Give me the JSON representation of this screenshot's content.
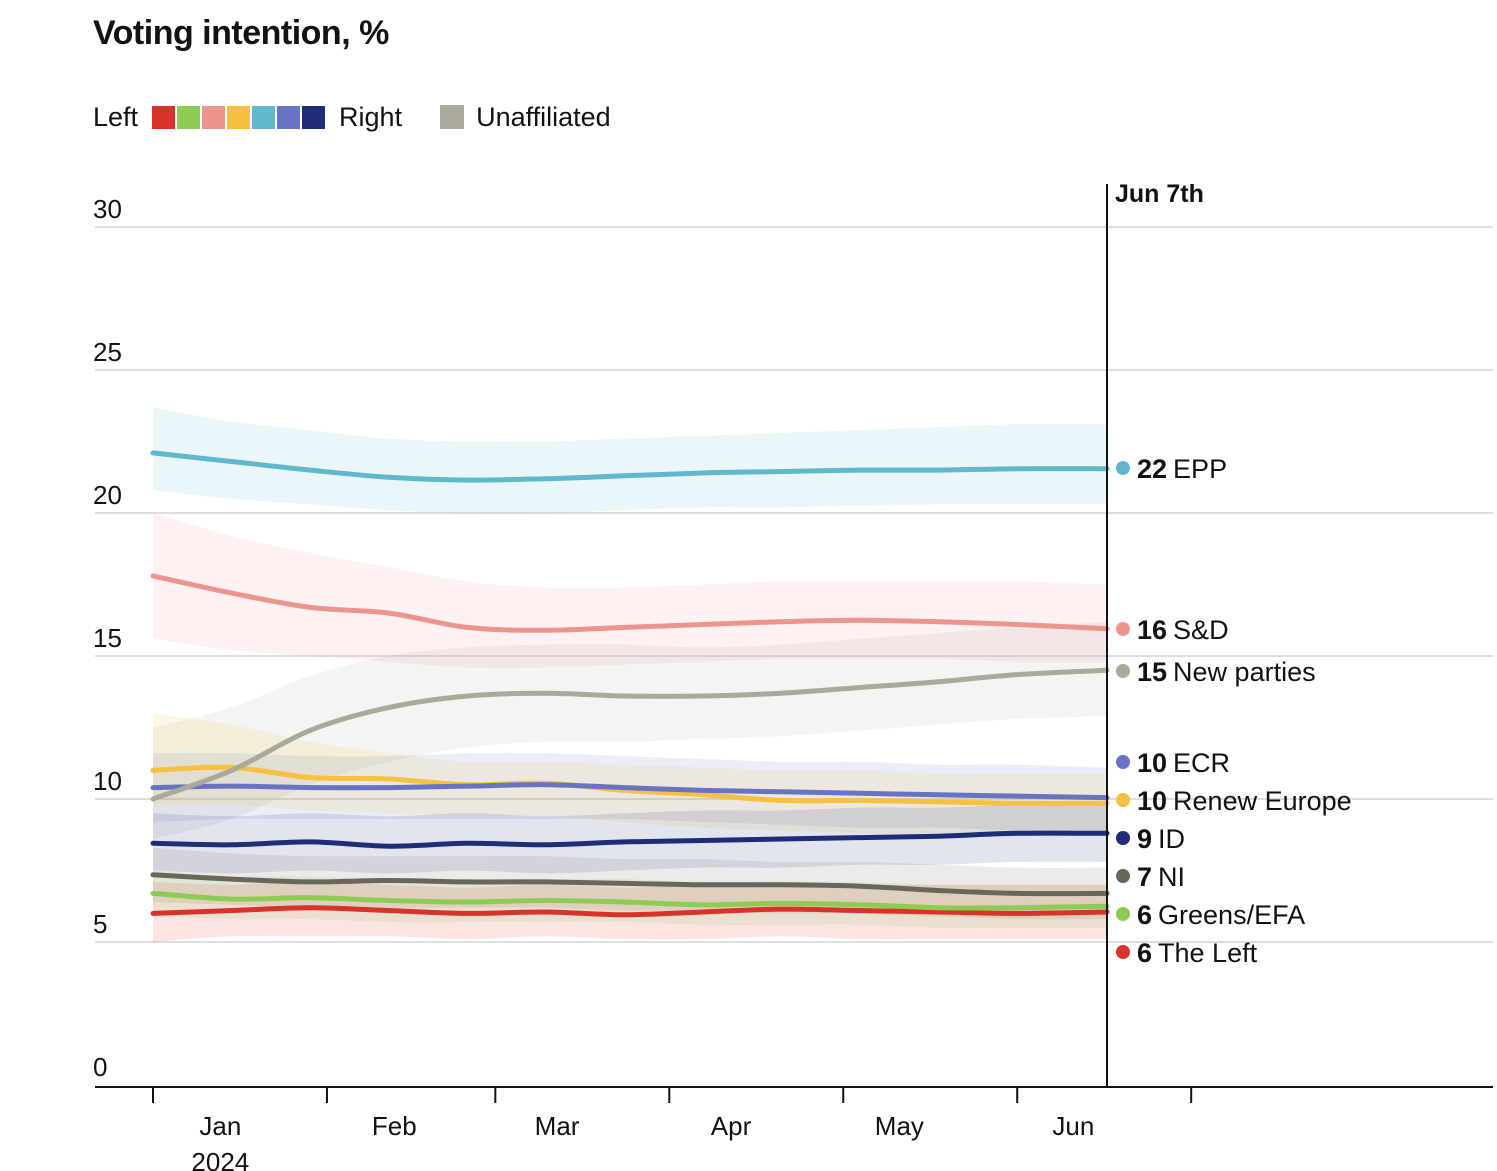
{
  "header": {
    "title": "Voting intention, %"
  },
  "legend": {
    "left_label": "Left",
    "right_label": "Right",
    "unaffiliated_label": "Unaffiliated",
    "scale_colors": [
      "#d7332a",
      "#8dcb52",
      "#ec958f",
      "#f6c041",
      "#5fb8cd",
      "#6873c3",
      "#1f2c78"
    ],
    "unaffiliated_color": "#aaa99a"
  },
  "chart_data": {
    "type": "line",
    "title": "Voting intention, %",
    "xlabel": "",
    "ylabel": "",
    "ylim": [
      0,
      30
    ],
    "yticks": [
      0,
      5,
      10,
      15,
      20,
      25,
      30
    ],
    "x_start": "2023-12-20",
    "x_end": "2024-06-07",
    "x_ticks": [
      {
        "label": "Jan",
        "year": "2024",
        "tick_date": "2023-12-20",
        "label_date": "2024-01-01"
      },
      {
        "label": "Feb",
        "year": "",
        "tick_date": "2024-01-20",
        "label_date": "2024-02-01"
      },
      {
        "label": "Mar",
        "year": "",
        "tick_date": "2024-02-19",
        "label_date": "2024-03-01"
      },
      {
        "label": "Apr",
        "year": "",
        "tick_date": "2024-03-21",
        "label_date": "2024-04-01"
      },
      {
        "label": "May",
        "year": "",
        "tick_date": "2024-04-21",
        "label_date": "2024-05-01"
      },
      {
        "label": "Jun",
        "year": "",
        "tick_date": "2024-05-22",
        "label_date": "2024-06-01"
      },
      {
        "label": "",
        "year": "",
        "tick_date": "2024-06-22",
        "label_date": ""
      }
    ],
    "cutoff": {
      "label": "Jun 7th",
      "date": "2024-06-07"
    },
    "x": [
      "2023-12-20",
      "2024-01-03",
      "2024-01-17",
      "2024-01-31",
      "2024-02-14",
      "2024-02-28",
      "2024-03-13",
      "2024-03-27",
      "2024-04-10",
      "2024-04-24",
      "2024-05-08",
      "2024-05-22",
      "2024-06-07"
    ],
    "series": [
      {
        "name": "EPP",
        "value_label": "22",
        "color": "#5fb8cd",
        "values": [
          22.1,
          21.8,
          21.5,
          21.25,
          21.15,
          21.2,
          21.3,
          21.4,
          21.45,
          21.5,
          21.5,
          21.55,
          21.55
        ],
        "lower": [
          20.8,
          20.5,
          20.3,
          20.1,
          20.0,
          20.0,
          20.1,
          20.2,
          20.2,
          20.25,
          20.3,
          20.3,
          20.3
        ],
        "upper": [
          23.7,
          23.2,
          22.9,
          22.6,
          22.5,
          22.5,
          22.6,
          22.7,
          22.8,
          22.9,
          23.0,
          23.1,
          23.1
        ]
      },
      {
        "name": "S&D",
        "value_label": "16",
        "color": "#ec958f",
        "values": [
          17.8,
          17.2,
          16.7,
          16.5,
          16.0,
          15.9,
          16.0,
          16.1,
          16.2,
          16.25,
          16.2,
          16.1,
          15.95
        ],
        "lower": [
          15.6,
          15.2,
          15.0,
          14.8,
          14.6,
          14.6,
          14.7,
          14.8,
          14.9,
          14.9,
          14.9,
          14.8,
          14.8
        ],
        "upper": [
          20.0,
          19.2,
          18.6,
          18.1,
          17.6,
          17.4,
          17.4,
          17.5,
          17.6,
          17.6,
          17.6,
          17.6,
          17.5
        ]
      },
      {
        "name": "New parties",
        "value_label": "15",
        "color": "#aaa99a",
        "values": [
          10.0,
          11.0,
          12.4,
          13.2,
          13.6,
          13.7,
          13.6,
          13.6,
          13.7,
          13.9,
          14.1,
          14.35,
          14.5
        ],
        "lower": [
          8.6,
          9.3,
          10.5,
          11.3,
          11.8,
          12.0,
          12.0,
          12.1,
          12.2,
          12.4,
          12.6,
          12.8,
          12.9
        ],
        "upper": [
          12.5,
          13.2,
          14.3,
          15.0,
          15.3,
          15.4,
          15.4,
          15.3,
          15.4,
          15.6,
          15.8,
          16.0,
          16.2
        ]
      },
      {
        "name": "ECR",
        "value_label": "10",
        "color": "#6873c3",
        "values": [
          10.4,
          10.45,
          10.4,
          10.4,
          10.45,
          10.5,
          10.4,
          10.3,
          10.25,
          10.2,
          10.15,
          10.1,
          10.05
        ],
        "lower": [
          9.2,
          9.3,
          9.3,
          9.3,
          9.3,
          9.3,
          9.3,
          9.2,
          9.1,
          9.0,
          9.0,
          8.9,
          8.9
        ],
        "upper": [
          11.6,
          11.6,
          11.5,
          11.5,
          11.6,
          11.6,
          11.5,
          11.4,
          11.3,
          11.3,
          11.2,
          11.2,
          11.1
        ]
      },
      {
        "name": "Renew Europe",
        "value_label": "10",
        "color": "#f6c041",
        "values": [
          11.0,
          11.1,
          10.75,
          10.7,
          10.5,
          10.55,
          10.3,
          10.15,
          9.95,
          9.95,
          9.9,
          9.85,
          9.85
        ],
        "lower": [
          9.8,
          9.8,
          9.6,
          9.5,
          9.4,
          9.4,
          9.2,
          9.0,
          8.9,
          8.8,
          8.8,
          8.7,
          8.7
        ],
        "upper": [
          13.0,
          12.6,
          12.0,
          11.6,
          11.3,
          11.3,
          11.2,
          11.1,
          11.0,
          11.0,
          10.9,
          10.9,
          10.9
        ]
      },
      {
        "name": "ID",
        "value_label": "9",
        "color": "#1f2c78",
        "values": [
          8.45,
          8.4,
          8.5,
          8.35,
          8.45,
          8.4,
          8.5,
          8.55,
          8.6,
          8.65,
          8.7,
          8.8,
          8.8
        ],
        "lower": [
          7.5,
          7.4,
          7.5,
          7.4,
          7.5,
          7.4,
          7.5,
          7.6,
          7.6,
          7.7,
          7.7,
          7.8,
          7.8
        ],
        "upper": [
          9.5,
          9.4,
          9.5,
          9.4,
          9.5,
          9.4,
          9.5,
          9.6,
          9.6,
          9.7,
          9.7,
          9.8,
          9.8
        ]
      },
      {
        "name": "NI",
        "value_label": "7",
        "color": "#6a675a",
        "values": [
          7.35,
          7.2,
          7.1,
          7.15,
          7.1,
          7.1,
          7.05,
          7.0,
          7.0,
          6.95,
          6.8,
          6.7,
          6.7
        ],
        "lower": [
          6.4,
          6.3,
          6.2,
          6.2,
          6.2,
          6.2,
          6.1,
          6.1,
          6.0,
          6.0,
          5.9,
          5.8,
          5.8
        ],
        "upper": [
          8.3,
          8.1,
          8.0,
          8.0,
          8.0,
          8.0,
          7.9,
          7.9,
          7.8,
          7.8,
          7.7,
          7.6,
          7.6
        ]
      },
      {
        "name": "Greens/EFA",
        "value_label": "6",
        "color": "#8dcb52",
        "values": [
          6.7,
          6.5,
          6.55,
          6.45,
          6.4,
          6.45,
          6.4,
          6.3,
          6.35,
          6.3,
          6.2,
          6.2,
          6.25
        ],
        "lower": [
          5.9,
          5.8,
          5.8,
          5.7,
          5.7,
          5.7,
          5.7,
          5.6,
          5.6,
          5.6,
          5.5,
          5.5,
          5.5
        ],
        "upper": [
          7.5,
          7.3,
          7.3,
          7.2,
          7.2,
          7.2,
          7.2,
          7.1,
          7.1,
          7.1,
          7.0,
          7.0,
          7.0
        ]
      },
      {
        "name": "The Left",
        "value_label": "6",
        "color": "#d7332a",
        "values": [
          6.0,
          6.1,
          6.2,
          6.1,
          6.0,
          6.05,
          5.95,
          6.05,
          6.15,
          6.1,
          6.05,
          6.0,
          6.05
        ],
        "lower": [
          5.0,
          5.2,
          5.2,
          5.2,
          5.1,
          5.2,
          5.1,
          5.1,
          5.2,
          5.1,
          5.1,
          5.1,
          5.1
        ],
        "upper": [
          7.1,
          7.0,
          7.1,
          7.0,
          6.9,
          7.0,
          6.9,
          7.0,
          7.1,
          7.0,
          7.0,
          7.0,
          7.0
        ]
      }
    ]
  }
}
